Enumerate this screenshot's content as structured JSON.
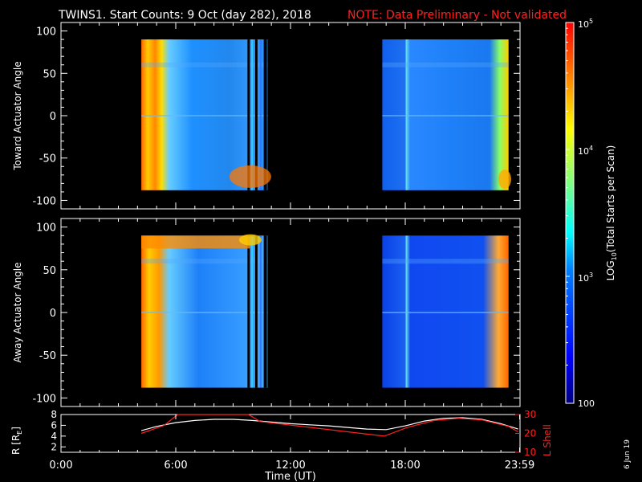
{
  "chart_data": [
    {
      "type": "heatmap",
      "title_main": "TWINS1. Start Counts:  9 Oct (day 282), 2018",
      "title_note": "NOTE: Data Preliminary - Not validated",
      "ylabel": "Toward Actuator Angle",
      "ylim": [
        -110,
        110
      ],
      "y_ticks": [
        "100",
        "50",
        "0",
        "-50",
        "-100"
      ],
      "xlim_hours": [
        0,
        24
      ],
      "data_blocks_hours": [
        [
          4.2,
          10.8
        ],
        [
          16.8,
          23.4
        ]
      ],
      "data_angle_range": [
        -88,
        90
      ]
    },
    {
      "type": "heatmap",
      "ylabel": "Away Actuator Angle",
      "ylim": [
        -110,
        110
      ],
      "y_ticks": [
        "100",
        "50",
        "0",
        "-50",
        "-100"
      ],
      "xlim_hours": [
        0,
        24
      ],
      "data_blocks_hours": [
        [
          4.2,
          10.8
        ],
        [
          16.8,
          23.4
        ]
      ],
      "data_angle_range": [
        -88,
        90
      ]
    },
    {
      "type": "line",
      "ylabel_left": "R [R",
      "ylabel_left_sub": "E",
      "ylabel_left_end": "]",
      "ylabel_right": "L Shell",
      "ylim_left": [
        1,
        8
      ],
      "ylim_right": [
        10,
        30
      ],
      "left_ticks": [
        "8",
        "6",
        "4",
        "2"
      ],
      "right_ticks": [
        "30",
        "20",
        "10"
      ],
      "xlabel": "Time (UT)",
      "x_ticks": [
        "0:00",
        "6:00",
        "12:00",
        "18:00",
        "23:59"
      ],
      "series": [
        {
          "color": "#ffffff",
          "x": [
            4.2,
            5,
            6,
            7,
            8,
            9,
            10,
            11,
            12,
            13,
            14,
            15,
            16,
            17,
            18,
            19,
            20,
            21,
            22,
            23,
            23.9
          ],
          "y": [
            5.0,
            5.8,
            6.5,
            6.9,
            7.1,
            7.1,
            6.9,
            6.6,
            6.3,
            6.1,
            5.9,
            5.6,
            5.3,
            5.2,
            5.9,
            6.8,
            7.3,
            7.4,
            7.1,
            6.3,
            5.3
          ]
        },
        {
          "color": "#ff2020",
          "x": [
            4.2,
            5.4,
            6.1,
            9.8,
            10.4,
            16.9,
            18.1,
            19.5,
            20.8,
            22.0,
            23.4,
            23.9
          ],
          "y": [
            4.5,
            6.0,
            8.4,
            8.4,
            6.7,
            4.0,
            5.6,
            6.9,
            7.3,
            7.0,
            5.8,
            4.8
          ]
        }
      ]
    }
  ],
  "colorbar": {
    "label": "LOG",
    "label_sub": "10",
    "label_end": "(Total Starts per Scan)",
    "ticks": [
      {
        "base": "10",
        "exp": "5",
        "log": 5
      },
      {
        "base": "10",
        "exp": "4",
        "log": 4
      },
      {
        "base": "10",
        "exp": "3",
        "log": 3
      },
      {
        "base": "100",
        "exp": "",
        "log": 2
      }
    ],
    "range_log": [
      2,
      5
    ]
  },
  "footer_date": "6 Jun 19",
  "colors": {
    "background": "#000000",
    "note_red": "#ff2020",
    "colormap": [
      "#00007f",
      "#0000ff",
      "#0080ff",
      "#00ffff",
      "#80ff80",
      "#ffff00",
      "#ff8000",
      "#ff0000"
    ]
  }
}
